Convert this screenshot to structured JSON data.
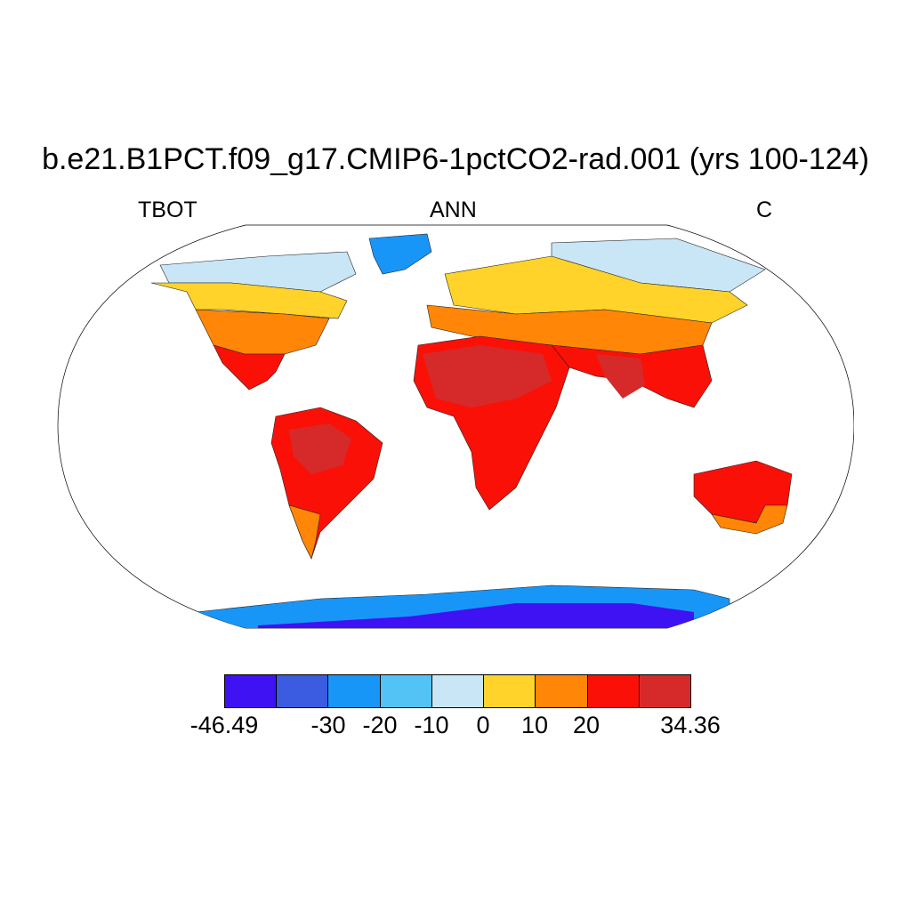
{
  "title": "b.e21.B1PCT.f09_g17.CMIP6-1pctCO2-rad.001 (yrs 100-124)",
  "subtitle": {
    "left": "TBOT",
    "center": "ANN",
    "right": "C"
  },
  "colorbar": {
    "colors": [
      "#3f12f4",
      "#3b5be0",
      "#1896f8",
      "#53c3f5",
      "#c8e6f6",
      "#ffd32a",
      "#ff8606",
      "#fb1007",
      "#d62a2a"
    ],
    "labels": [
      "-46.49",
      "-30",
      "-20",
      "-10",
      "0",
      "10",
      "20",
      "34.36"
    ]
  }
}
